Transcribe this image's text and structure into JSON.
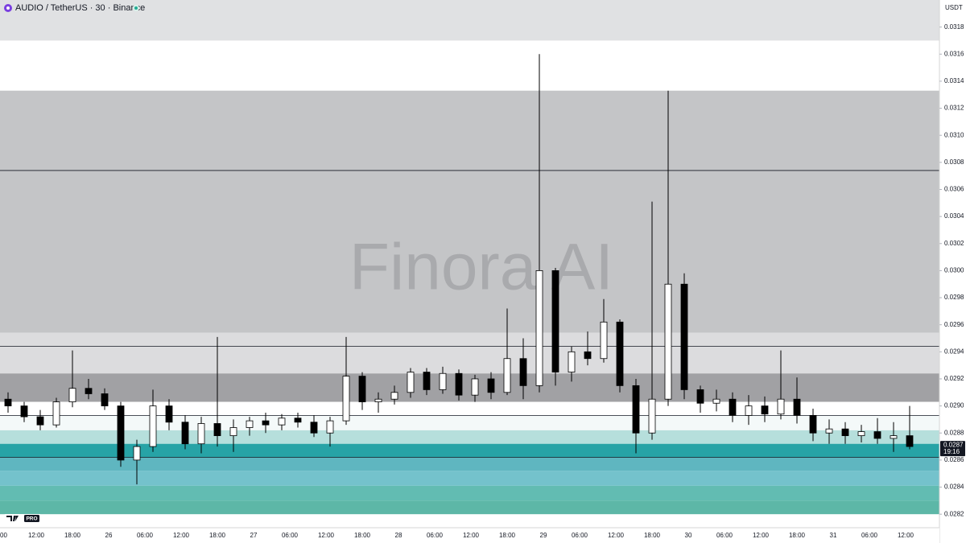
{
  "chart_data": {
    "type": "candlestick",
    "header": "AUDIO / TetherUS · 30 · Binance",
    "unit": "USDT",
    "watermark": "Finora AI",
    "logo_badge": "PRO",
    "last_price": 0.0287,
    "countdown": "19:16",
    "ylim": [
      0.0281,
      0.032
    ],
    "yticks": [
      0.0318,
      0.0316,
      0.0314,
      0.0312,
      {
        "value": 0.031,
        "label": "0.0310"
      },
      0.0308,
      0.0306,
      0.0304,
      0.0302,
      {
        "value": 0.03,
        "label": "0.0300"
      },
      0.0298,
      0.0296,
      0.0294,
      0.0292,
      {
        "value": 0.029,
        "label": "0.0290"
      },
      0.0288,
      0.0286,
      0.0284,
      0.0282
    ],
    "xticks": [
      "00",
      "12:00",
      "18:00",
      "26",
      "06:00",
      "12:00",
      "18:00",
      "27",
      "06:00",
      "12:00",
      "18:00",
      "28",
      "06:00",
      "12:00",
      "18:00",
      "29",
      "06:00",
      "12:00",
      "18:00",
      "30",
      "06:00",
      "12:00",
      "18:00",
      "31",
      "06:00",
      "12:00"
    ],
    "zones": [
      {
        "top": 0.032,
        "bottom": 0.0317,
        "color": "#e0e1e3"
      },
      {
        "top": 0.0317,
        "bottom": 0.03133,
        "color": "#ffffff"
      },
      {
        "top": 0.03133,
        "bottom": 0.02954,
        "color": "#c4c5c7"
      },
      {
        "top": 0.02954,
        "bottom": 0.02924,
        "color": "#dcdcde"
      },
      {
        "top": 0.02924,
        "bottom": 0.02903,
        "color": "#a1a1a4"
      },
      {
        "top": 0.02903,
        "bottom": 0.02893,
        "color": "#ffffff"
      },
      {
        "top": 0.02893,
        "bottom": 0.02882,
        "color": "#f4f9f9"
      },
      {
        "top": 0.02882,
        "bottom": 0.02872,
        "color": "#b6dfdc"
      },
      {
        "top": 0.02872,
        "bottom": 0.02862,
        "color": "#27a3a6"
      },
      {
        "top": 0.02862,
        "bottom": 0.02852,
        "color": "#5fb6c0"
      },
      {
        "top": 0.02852,
        "bottom": 0.02841,
        "color": "#74c2cc"
      },
      {
        "top": 0.02841,
        "bottom": 0.0283,
        "color": "#62bcb2"
      },
      {
        "top": 0.0283,
        "bottom": 0.0282,
        "color": "#5db7a7"
      }
    ],
    "levels": [
      0.03074,
      0.02944,
      0.02893,
      0.02862
    ],
    "candles": [
      [
        0.02905,
        0.0291,
        0.02895,
        0.029
      ],
      [
        0.029,
        0.02903,
        0.02888,
        0.02892
      ],
      [
        0.02892,
        0.02897,
        0.02882,
        0.02886
      ],
      [
        0.02886,
        0.02906,
        0.02884,
        0.02903
      ],
      [
        0.02903,
        0.02941,
        0.02899,
        0.02913
      ],
      [
        0.02913,
        0.0292,
        0.02905,
        0.02909
      ],
      [
        0.02909,
        0.02913,
        0.02897,
        0.029
      ],
      [
        0.029,
        0.02903,
        0.02855,
        0.0286
      ],
      [
        0.0286,
        0.02875,
        0.02842,
        0.0287
      ],
      [
        0.0287,
        0.02912,
        0.02866,
        0.029
      ],
      [
        0.029,
        0.02905,
        0.02882,
        0.02888
      ],
      [
        0.02888,
        0.02893,
        0.02868,
        0.02872
      ],
      [
        0.02872,
        0.02892,
        0.02865,
        0.02887
      ],
      [
        0.02887,
        0.02951,
        0.0287,
        0.02878
      ],
      [
        0.02878,
        0.0289,
        0.02866,
        0.02884
      ],
      [
        0.02884,
        0.02892,
        0.02878,
        0.02889
      ],
      [
        0.02889,
        0.02895,
        0.0288,
        0.02886
      ],
      [
        0.02886,
        0.02894,
        0.02882,
        0.02891
      ],
      [
        0.02891,
        0.02895,
        0.02884,
        0.02888
      ],
      [
        0.02888,
        0.02893,
        0.02877,
        0.0288
      ],
      [
        0.0288,
        0.02892,
        0.0287,
        0.02889
      ],
      [
        0.02889,
        0.02951,
        0.02886,
        0.02922
      ],
      [
        0.02922,
        0.02925,
        0.02897,
        0.02903
      ],
      [
        0.02903,
        0.0291,
        0.02895,
        0.02905
      ],
      [
        0.02905,
        0.02915,
        0.02901,
        0.0291
      ],
      [
        0.0291,
        0.02928,
        0.02906,
        0.02925
      ],
      [
        0.02925,
        0.02928,
        0.02908,
        0.02912
      ],
      [
        0.02912,
        0.02929,
        0.02909,
        0.02924
      ],
      [
        0.02924,
        0.02927,
        0.02904,
        0.02908
      ],
      [
        0.02908,
        0.02923,
        0.02903,
        0.0292
      ],
      [
        0.0292,
        0.02925,
        0.02905,
        0.0291
      ],
      [
        0.0291,
        0.02972,
        0.02908,
        0.02935
      ],
      [
        0.02935,
        0.0295,
        0.02905,
        0.02915
      ],
      [
        0.02915,
        0.0316,
        0.0291,
        0.03
      ],
      [
        0.03,
        0.03002,
        0.02915,
        0.02925
      ],
      [
        0.02925,
        0.02944,
        0.02918,
        0.0294
      ],
      [
        0.0294,
        0.02955,
        0.0293,
        0.02935
      ],
      [
        0.02935,
        0.02979,
        0.02932,
        0.02962
      ],
      [
        0.02962,
        0.02964,
        0.0291,
        0.02915
      ],
      [
        0.02915,
        0.0292,
        0.02865,
        0.0288
      ],
      [
        0.0288,
        0.03051,
        0.02875,
        0.02905
      ],
      [
        0.02905,
        0.03133,
        0.029,
        0.0299
      ],
      [
        0.0299,
        0.02998,
        0.02905,
        0.02912
      ],
      [
        0.02912,
        0.02915,
        0.02895,
        0.02902
      ],
      [
        0.02902,
        0.02912,
        0.02896,
        0.02905
      ],
      [
        0.02905,
        0.0291,
        0.02888,
        0.02893
      ],
      [
        0.02893,
        0.02908,
        0.02886,
        0.029
      ],
      [
        0.029,
        0.02907,
        0.02888,
        0.02894
      ],
      [
        0.02894,
        0.02941,
        0.0289,
        0.02905
      ],
      [
        0.02905,
        0.02921,
        0.02887,
        0.02893
      ],
      [
        0.02893,
        0.02898,
        0.02874,
        0.0288
      ],
      [
        0.0288,
        0.0289,
        0.02872,
        0.02883
      ],
      [
        0.02883,
        0.02888,
        0.02872,
        0.02878
      ],
      [
        0.02878,
        0.02886,
        0.02873,
        0.02881
      ],
      [
        0.02881,
        0.02891,
        0.02872,
        0.02876
      ],
      [
        0.02876,
        0.02888,
        0.02866,
        0.02878
      ],
      [
        0.02878,
        0.029,
        0.02868,
        0.0287
      ]
    ]
  }
}
